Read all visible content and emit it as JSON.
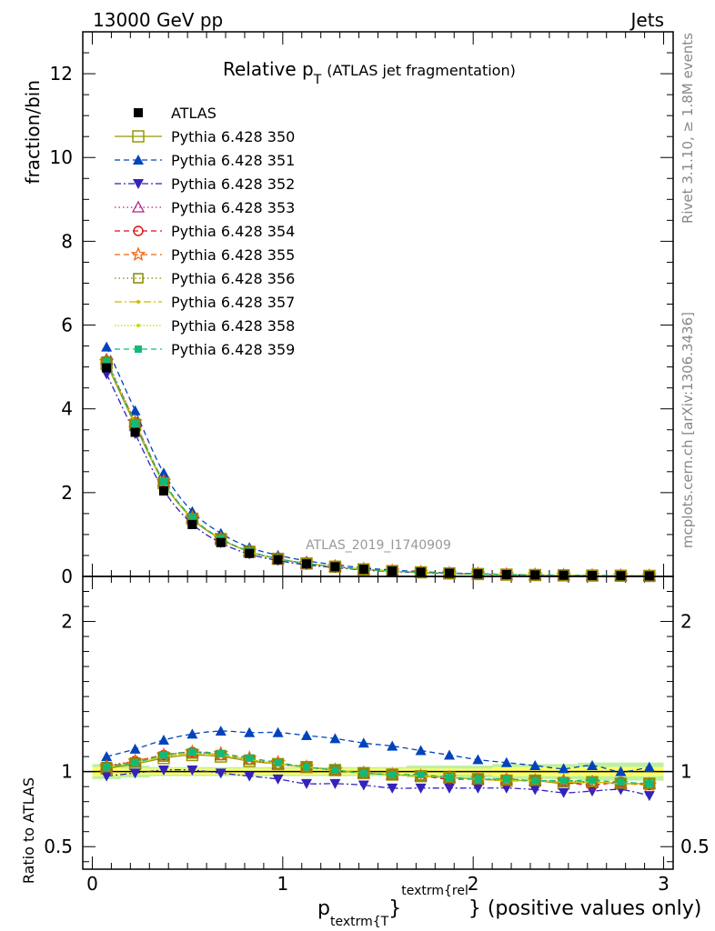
{
  "header": {
    "left": "13000 GeV pp",
    "right": "Jets"
  },
  "side_labels": {
    "rivet": "Rivet 3.1.10, ≥ 1.8M events",
    "mcplots": "mcplots.cern.ch [arXiv:1306.3436]"
  },
  "chart_data": {
    "type": "scatter",
    "title_main": "Relative p",
    "title_sub": "T",
    "title_rest": "(ATLAS jet fragmentation)",
    "watermark": "ATLAS_2019_I1740909",
    "xlabel": {
      "p": "p",
      "sub": "textrm{T",
      "brace": "}",
      "sup": "textrm{rel",
      "rest": "} (positive values only)"
    },
    "ylabel_main": "fraction/bin",
    "ylabel_ratio": "Ratio to ATLAS",
    "xlim": [
      -0.05,
      3.05
    ],
    "main_ylim": [
      0,
      13
    ],
    "ratio_ylim": [
      0.35,
      2.3
    ],
    "main_yticks": [
      0,
      2,
      4,
      6,
      8,
      10,
      12
    ],
    "ratio_yticks": [
      0.5,
      1,
      2
    ],
    "xticks": [
      0,
      1,
      2,
      3
    ],
    "x": [
      0.075,
      0.225,
      0.375,
      0.525,
      0.675,
      0.825,
      0.975,
      1.125,
      1.275,
      1.425,
      1.575,
      1.725,
      1.875,
      2.025,
      2.175,
      2.325,
      2.475,
      2.625,
      2.775,
      2.925
    ],
    "atlas": [
      4.98,
      3.44,
      2.04,
      1.24,
      0.81,
      0.55,
      0.4,
      0.3,
      0.23,
      0.17,
      0.13,
      0.1,
      0.075,
      0.06,
      0.045,
      0.035,
      0.028,
      0.022,
      0.017,
      0.013
    ],
    "band": {
      "inner": [
        0.03,
        0.02,
        0.02,
        0.02,
        0.02,
        0.02,
        0.02,
        0.02,
        0.02,
        0.02,
        0.02,
        0.02,
        0.02,
        0.02,
        0.03,
        0.03,
        0.03,
        0.03,
        0.03,
        0.03
      ],
      "outer": [
        0.05,
        0.04,
        0.03,
        0.03,
        0.03,
        0.03,
        0.03,
        0.03,
        0.03,
        0.03,
        0.03,
        0.04,
        0.04,
        0.04,
        0.05,
        0.05,
        0.05,
        0.06,
        0.06,
        0.06
      ],
      "inner_color": "#ffff66",
      "outer_color": "#bff0a0"
    },
    "series": [
      {
        "name": "ATLAS",
        "color": "#000000",
        "marker": "square-filled",
        "dash": "none",
        "line": false
      },
      {
        "name": "Pythia 6.428 350",
        "color": "#999900",
        "marker": "square-open-large",
        "dash": "solid",
        "line": true,
        "ratio": [
          1.02,
          1.05,
          1.09,
          1.11,
          1.1,
          1.07,
          1.05,
          1.03,
          1.01,
          0.99,
          0.98,
          0.97,
          0.96,
          0.95,
          0.94,
          0.94,
          0.92,
          0.93,
          0.92,
          0.92
        ]
      },
      {
        "name": "Pythia 6.428 351",
        "color": "#0044bb",
        "marker": "triangle-up-filled",
        "dash": "6,4",
        "line": true,
        "ratio": [
          1.1,
          1.15,
          1.21,
          1.25,
          1.27,
          1.26,
          1.26,
          1.24,
          1.22,
          1.19,
          1.17,
          1.14,
          1.11,
          1.08,
          1.06,
          1.04,
          1.02,
          1.04,
          1.0,
          1.03
        ]
      },
      {
        "name": "Pythia 6.428 352",
        "color": "#3322bb",
        "marker": "triangle-down-filled",
        "dash": "7,3,2,3",
        "line": true,
        "ratio": [
          0.97,
          0.99,
          1.01,
          1.01,
          0.99,
          0.97,
          0.95,
          0.92,
          0.92,
          0.91,
          0.89,
          0.89,
          0.89,
          0.89,
          0.89,
          0.88,
          0.86,
          0.87,
          0.88,
          0.84
        ]
      },
      {
        "name": "Pythia 6.428 353",
        "color": "#bb2288",
        "marker": "triangle-up-open",
        "dash": "1.5,3",
        "line": true,
        "ratio": [
          1.04,
          1.07,
          1.11,
          1.13,
          1.11,
          1.08,
          1.05,
          1.03,
          1.01,
          0.99,
          0.98,
          0.97,
          0.96,
          0.95,
          0.95,
          0.94,
          0.94,
          0.93,
          0.92,
          0.92
        ]
      },
      {
        "name": "Pythia 6.428 354",
        "color": "#dd1111",
        "marker": "circle-open",
        "dash": "6,4",
        "line": true,
        "ratio": [
          1.03,
          1.07,
          1.11,
          1.13,
          1.11,
          1.08,
          1.05,
          1.03,
          1.01,
          0.99,
          0.98,
          0.97,
          0.95,
          0.95,
          0.94,
          0.94,
          0.93,
          0.91,
          0.93,
          0.91
        ]
      },
      {
        "name": "Pythia 6.428 355",
        "color": "#ee6611",
        "marker": "star-open",
        "dash": "6,4",
        "line": true,
        "ratio": [
          1.03,
          1.07,
          1.11,
          1.13,
          1.12,
          1.09,
          1.06,
          1.03,
          1.01,
          0.99,
          0.98,
          0.97,
          0.96,
          0.95,
          0.94,
          0.94,
          0.94,
          0.93,
          0.92,
          0.91
        ]
      },
      {
        "name": "Pythia 6.428 356",
        "color": "#888800",
        "marker": "square-open",
        "dash": "1.5,3",
        "line": true,
        "ratio": [
          1.03,
          1.06,
          1.1,
          1.12,
          1.11,
          1.08,
          1.05,
          1.03,
          1.01,
          0.99,
          0.98,
          0.97,
          0.96,
          0.95,
          0.94,
          0.94,
          0.93,
          0.93,
          0.92,
          0.92
        ]
      },
      {
        "name": "Pythia 6.428 357",
        "color": "#ccbb00",
        "marker": "small-dot",
        "dash": "8,3,2,3",
        "line": true,
        "ratio": [
          1.03,
          1.06,
          1.1,
          1.12,
          1.11,
          1.08,
          1.05,
          1.03,
          1.01,
          0.99,
          0.98,
          0.97,
          0.96,
          0.95,
          0.94,
          0.94,
          0.93,
          0.93,
          0.92,
          0.92
        ]
      },
      {
        "name": "Pythia 6.428 358",
        "color": "#bbdd00",
        "marker": "small-dot",
        "dash": "1.5,2",
        "line": true,
        "ratio": [
          1.03,
          1.06,
          1.1,
          1.12,
          1.11,
          1.08,
          1.05,
          1.03,
          1.01,
          0.99,
          0.98,
          0.97,
          0.96,
          0.95,
          0.94,
          0.94,
          0.93,
          0.93,
          0.92,
          0.92
        ]
      },
      {
        "name": "Pythia 6.428 359",
        "color": "#11bb77",
        "marker": "square-filled-small",
        "dash": "6,4",
        "line": true,
        "ratio": [
          1.03,
          1.06,
          1.11,
          1.13,
          1.12,
          1.09,
          1.06,
          1.03,
          1.01,
          0.99,
          0.98,
          0.98,
          0.96,
          0.95,
          0.95,
          0.94,
          0.94,
          0.94,
          0.93,
          0.92
        ]
      }
    ]
  }
}
